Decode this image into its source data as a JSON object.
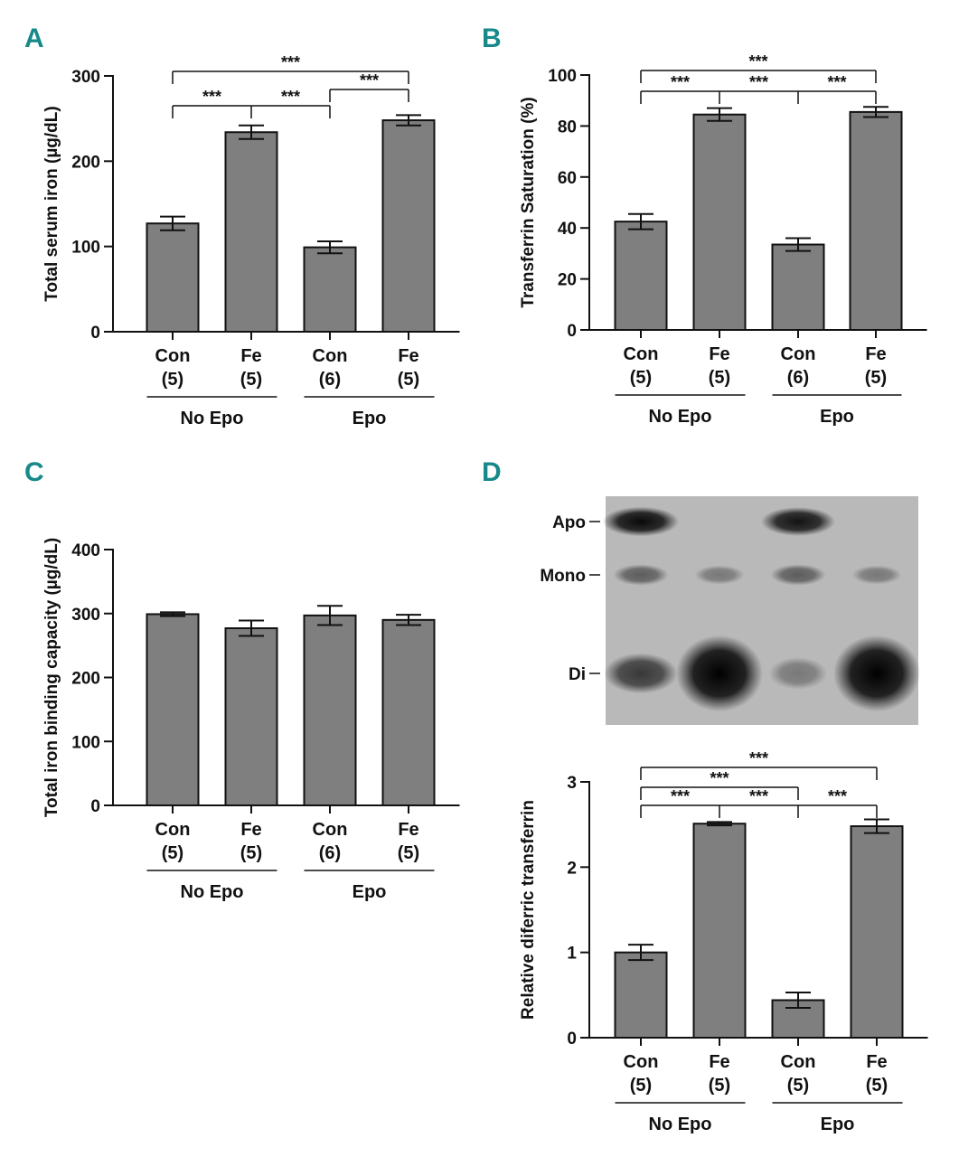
{
  "colors": {
    "bar": "#7f7f7f",
    "panel_letter": "#17898a",
    "blot_bg": "#b9b9b9"
  },
  "chart_data": [
    {
      "panel": "A",
      "type": "bar",
      "ylabel": "Total serum iron (µg/dL)",
      "ylim": [
        0,
        300
      ],
      "yticks": [
        "0",
        "100",
        "200",
        "300"
      ],
      "ytick_values": [
        0,
        100,
        200,
        300
      ],
      "categories": [
        {
          "name": "Con",
          "n": "(5)"
        },
        {
          "name": "Fe",
          "n": "(5)"
        },
        {
          "name": "Con",
          "n": "(6)"
        },
        {
          "name": "Fe",
          "n": "(5)"
        }
      ],
      "groups": [
        "No Epo",
        "Epo"
      ],
      "values": [
        127,
        234,
        99,
        248
      ],
      "errors": [
        8,
        8,
        7,
        6
      ],
      "significance": [
        {
          "from": 0,
          "to": 3,
          "level": 0,
          "label": "***"
        },
        {
          "from": 0,
          "to": 2,
          "level": 2,
          "ticks": [
            1
          ],
          "labels_between": [
            [
              0,
              1
            ],
            [
              1,
              2
            ]
          ],
          "label": "***"
        },
        {
          "from": 2,
          "to": 3,
          "level": 1,
          "label": "***"
        }
      ]
    },
    {
      "panel": "B",
      "type": "bar",
      "ylabel": "Transferrin Saturation (%)",
      "ylim": [
        0,
        100
      ],
      "yticks": [
        "0",
        "20",
        "40",
        "60",
        "80",
        "100"
      ],
      "ytick_values": [
        0,
        20,
        40,
        60,
        80,
        100
      ],
      "categories": [
        {
          "name": "Con",
          "n": "(5)"
        },
        {
          "name": "Fe",
          "n": "(5)"
        },
        {
          "name": "Con",
          "n": "(6)"
        },
        {
          "name": "Fe",
          "n": "(5)"
        }
      ],
      "groups": [
        "No Epo",
        "Epo"
      ],
      "values": [
        42.5,
        84.5,
        33.5,
        85.5
      ],
      "errors": [
        3,
        2.5,
        2.5,
        2
      ],
      "significance": [
        {
          "from": 0,
          "to": 3,
          "level": 0,
          "label": "***"
        },
        {
          "from": 0,
          "to": 3,
          "level": 1,
          "ticks": [
            1,
            2
          ],
          "labels_between": [
            [
              0,
              1
            ],
            [
              1,
              2
            ],
            [
              2,
              3
            ]
          ],
          "label": "***"
        }
      ]
    },
    {
      "panel": "C",
      "type": "bar",
      "ylabel": "Total iron binding capacity (µg/dL)",
      "ylim": [
        0,
        400
      ],
      "yticks": [
        "0",
        "100",
        "200",
        "300",
        "400"
      ],
      "ytick_values": [
        0,
        100,
        200,
        300,
        400
      ],
      "categories": [
        {
          "name": "Con",
          "n": "(5)"
        },
        {
          "name": "Fe",
          "n": "(5)"
        },
        {
          "name": "Con",
          "n": "(6)"
        },
        {
          "name": "Fe",
          "n": "(5)"
        }
      ],
      "groups": [
        "No Epo",
        "Epo"
      ],
      "values": [
        299,
        277,
        297,
        290
      ],
      "errors": [
        3,
        12,
        15,
        8
      ],
      "significance": []
    },
    {
      "panel": "D",
      "type": "bar",
      "ylabel": "Relative diferric transferrin",
      "ylim": [
        0,
        3
      ],
      "yticks": [
        "0",
        "1",
        "2",
        "3"
      ],
      "ytick_values": [
        0,
        1,
        2,
        3
      ],
      "categories": [
        {
          "name": "Con",
          "n": "(5)"
        },
        {
          "name": "Fe",
          "n": "(5)"
        },
        {
          "name": "Con",
          "n": "(5)"
        },
        {
          "name": "Fe",
          "n": "(5)"
        }
      ],
      "groups": [
        "No Epo",
        "Epo"
      ],
      "values": [
        1.0,
        2.51,
        0.44,
        2.48
      ],
      "errors": [
        0.09,
        0.02,
        0.09,
        0.08
      ],
      "significance": [
        {
          "from": 0,
          "to": 3,
          "level": 0,
          "label": "***"
        },
        {
          "from": 0,
          "to": 2,
          "level": 1,
          "label": "***"
        },
        {
          "from": 0,
          "to": 3,
          "level": 2,
          "ticks": [
            1,
            2
          ],
          "labels_between": [
            [
              0,
              1
            ],
            [
              1,
              2
            ],
            [
              2,
              3
            ]
          ],
          "label": "***"
        }
      ]
    }
  ],
  "blot": {
    "bands": [
      "Apo",
      "Mono",
      "Di"
    ],
    "intensity": [
      [
        0.95,
        0.5,
        0.7
      ],
      [
        0,
        0.35,
        1.0
      ],
      [
        0.9,
        0.5,
        0.35
      ],
      [
        0,
        0.35,
        1.0
      ]
    ]
  }
}
